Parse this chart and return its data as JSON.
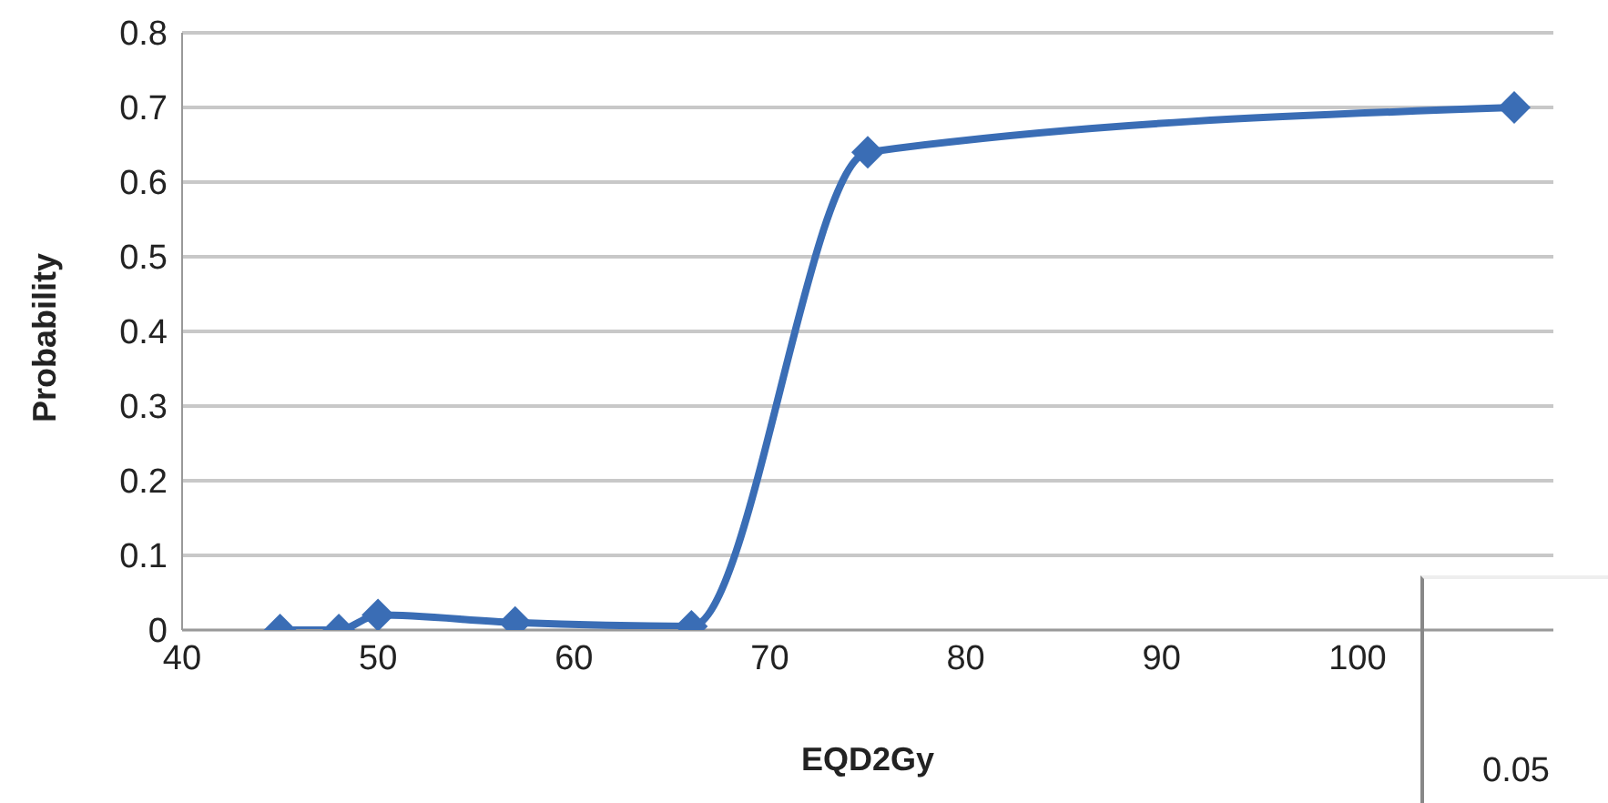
{
  "chart_data": {
    "type": "line",
    "xlabel": "EQD2Gy",
    "ylabel": "Probability",
    "x": [
      45,
      48,
      50,
      57,
      66,
      75,
      108
    ],
    "series": [
      {
        "color": "#3a6db5",
        "values": [
          0,
          0,
          0.02,
          0.01,
          0.005,
          0.64,
          0.7
        ]
      }
    ],
    "xlim": [
      40,
      110
    ],
    "xticks": [
      40,
      50,
      60,
      70,
      80,
      90,
      100
    ],
    "ylim": [
      0,
      0.8
    ],
    "yticks": [
      0,
      0.1,
      0.2,
      0.3,
      0.4,
      0.5,
      0.6,
      0.7,
      0.8
    ],
    "grid": "y",
    "marker": "diamond",
    "line_style": "solid",
    "annotations": [
      "0.05"
    ]
  }
}
